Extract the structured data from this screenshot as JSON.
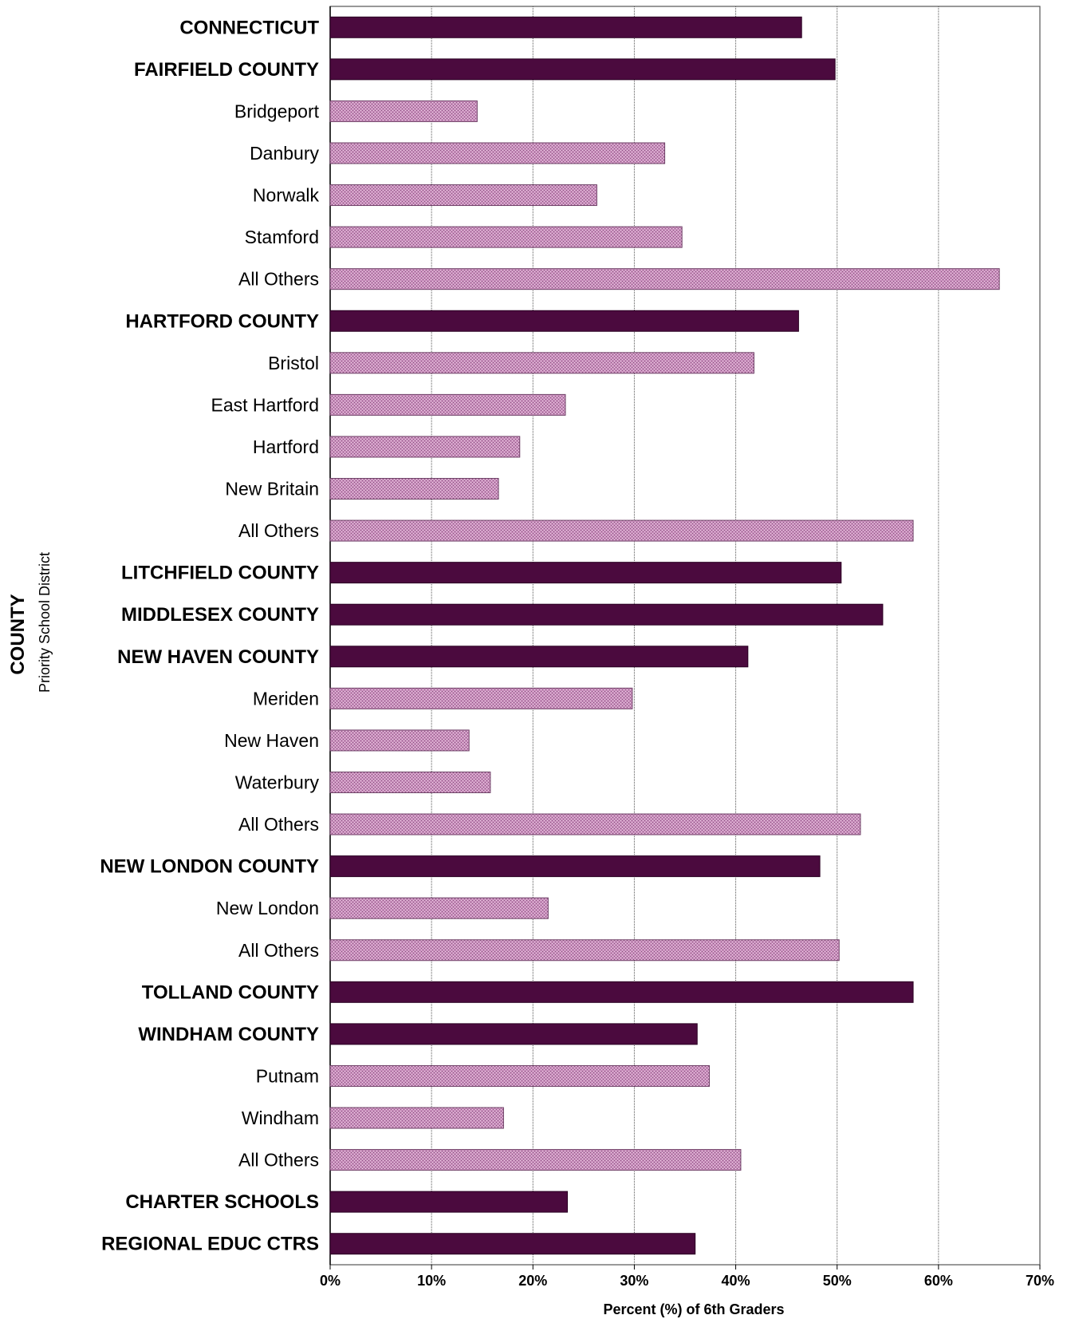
{
  "chart_data": {
    "type": "bar",
    "orientation": "horizontal",
    "xlabel": "Percent (%) of 6th Graders",
    "ylabel": "COUNTY",
    "ylabel_sub": "Priority School District",
    "xlim": [
      0,
      70
    ],
    "xticks": [
      0,
      10,
      20,
      30,
      40,
      50,
      60,
      70
    ],
    "xtick_labels": [
      "0%",
      "10%",
      "20%",
      "30%",
      "40%",
      "50%",
      "60%",
      "70%"
    ],
    "grid": "vertical",
    "colors": {
      "county": "#4b0a3e",
      "district": "#c98fbc"
    },
    "categories": [
      {
        "label": "CONNECTICUT",
        "value": 46.5,
        "level": "county"
      },
      {
        "label": "FAIRFIELD COUNTY",
        "value": 49.8,
        "level": "county"
      },
      {
        "label": "Bridgeport",
        "value": 14.5,
        "level": "district"
      },
      {
        "label": "Danbury",
        "value": 33.0,
        "level": "district"
      },
      {
        "label": "Norwalk",
        "value": 26.3,
        "level": "district"
      },
      {
        "label": "Stamford",
        "value": 34.7,
        "level": "district"
      },
      {
        "label": "All Others",
        "value": 66.0,
        "level": "district"
      },
      {
        "label": "HARTFORD COUNTY",
        "value": 46.2,
        "level": "county"
      },
      {
        "label": "Bristol",
        "value": 41.8,
        "level": "district"
      },
      {
        "label": "East Hartford",
        "value": 23.2,
        "level": "district"
      },
      {
        "label": "Hartford",
        "value": 18.7,
        "level": "district"
      },
      {
        "label": "New Britain",
        "value": 16.6,
        "level": "district"
      },
      {
        "label": "All Others",
        "value": 57.5,
        "level": "district"
      },
      {
        "label": "LITCHFIELD COUNTY",
        "value": 50.4,
        "level": "county"
      },
      {
        "label": "MIDDLESEX COUNTY",
        "value": 54.5,
        "level": "county"
      },
      {
        "label": "NEW HAVEN COUNTY",
        "value": 41.2,
        "level": "county"
      },
      {
        "label": "Meriden",
        "value": 29.8,
        "level": "district"
      },
      {
        "label": "New Haven",
        "value": 13.7,
        "level": "district"
      },
      {
        "label": "Waterbury",
        "value": 15.8,
        "level": "district"
      },
      {
        "label": "All Others",
        "value": 52.3,
        "level": "district"
      },
      {
        "label": "NEW LONDON COUNTY",
        "value": 48.3,
        "level": "county"
      },
      {
        "label": "New London",
        "value": 21.5,
        "level": "district"
      },
      {
        "label": "All Others",
        "value": 50.2,
        "level": "district"
      },
      {
        "label": "TOLLAND COUNTY",
        "value": 57.5,
        "level": "county"
      },
      {
        "label": "WINDHAM COUNTY",
        "value": 36.2,
        "level": "county"
      },
      {
        "label": "Putnam",
        "value": 37.4,
        "level": "district"
      },
      {
        "label": "Windham",
        "value": 17.1,
        "level": "district"
      },
      {
        "label": "All Others",
        "value": 40.5,
        "level": "district"
      },
      {
        "label": "CHARTER SCHOOLS",
        "value": 23.4,
        "level": "county"
      },
      {
        "label": "REGIONAL EDUC CTRS",
        "value": 36.0,
        "level": "county"
      }
    ]
  }
}
